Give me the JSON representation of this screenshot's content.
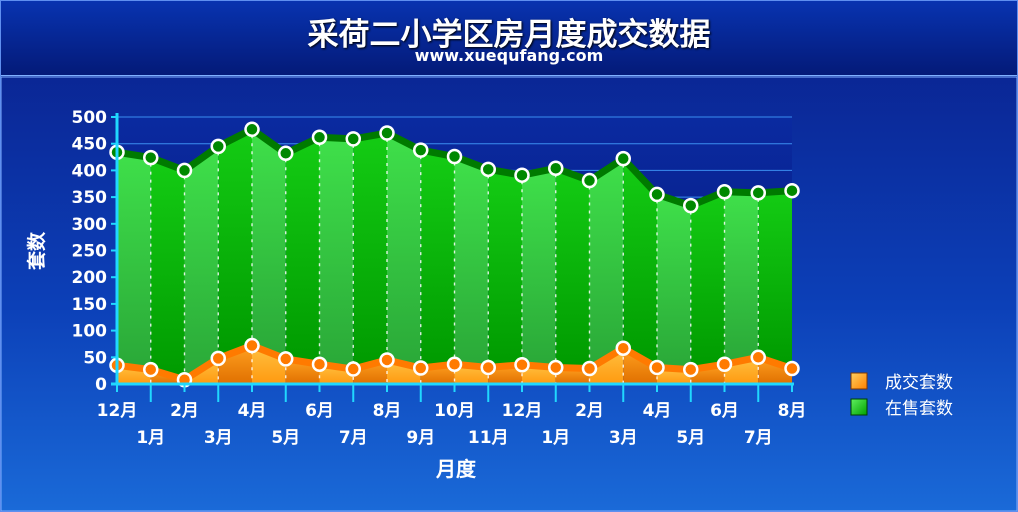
{
  "header": {
    "title": "采荷二小学区房月度成交数据",
    "subtitle": "www.xuequfang.com"
  },
  "chart_data": {
    "type": "area",
    "xlabel": "月度",
    "ylabel": "套数",
    "ylim": [
      0,
      500
    ],
    "yticks": [
      0,
      50,
      100,
      150,
      200,
      250,
      300,
      350,
      400,
      450,
      500
    ],
    "categories": [
      "12月",
      "1月",
      "2月",
      "3月",
      "4月",
      "5月",
      "6月",
      "7月",
      "8月",
      "9月",
      "10月",
      "11月",
      "12月",
      "1月",
      "2月",
      "3月",
      "4月",
      "5月",
      "6月",
      "7月",
      "8月"
    ],
    "series": [
      {
        "name": "成交套数",
        "color": "#ff8a00",
        "values": [
          35,
          27,
          8,
          48,
          72,
          47,
          37,
          28,
          45,
          30,
          37,
          31,
          36,
          31,
          29,
          67,
          31,
          27,
          37,
          50,
          29
        ]
      },
      {
        "name": "在售套数",
        "color": "#00b800",
        "values": [
          434,
          424,
          400,
          445,
          477,
          432,
          462,
          459,
          470,
          438,
          426,
          402,
          391,
          404,
          381,
          422,
          355,
          334,
          360,
          358,
          362
        ]
      }
    ],
    "legend_position": "right",
    "grid": true
  }
}
